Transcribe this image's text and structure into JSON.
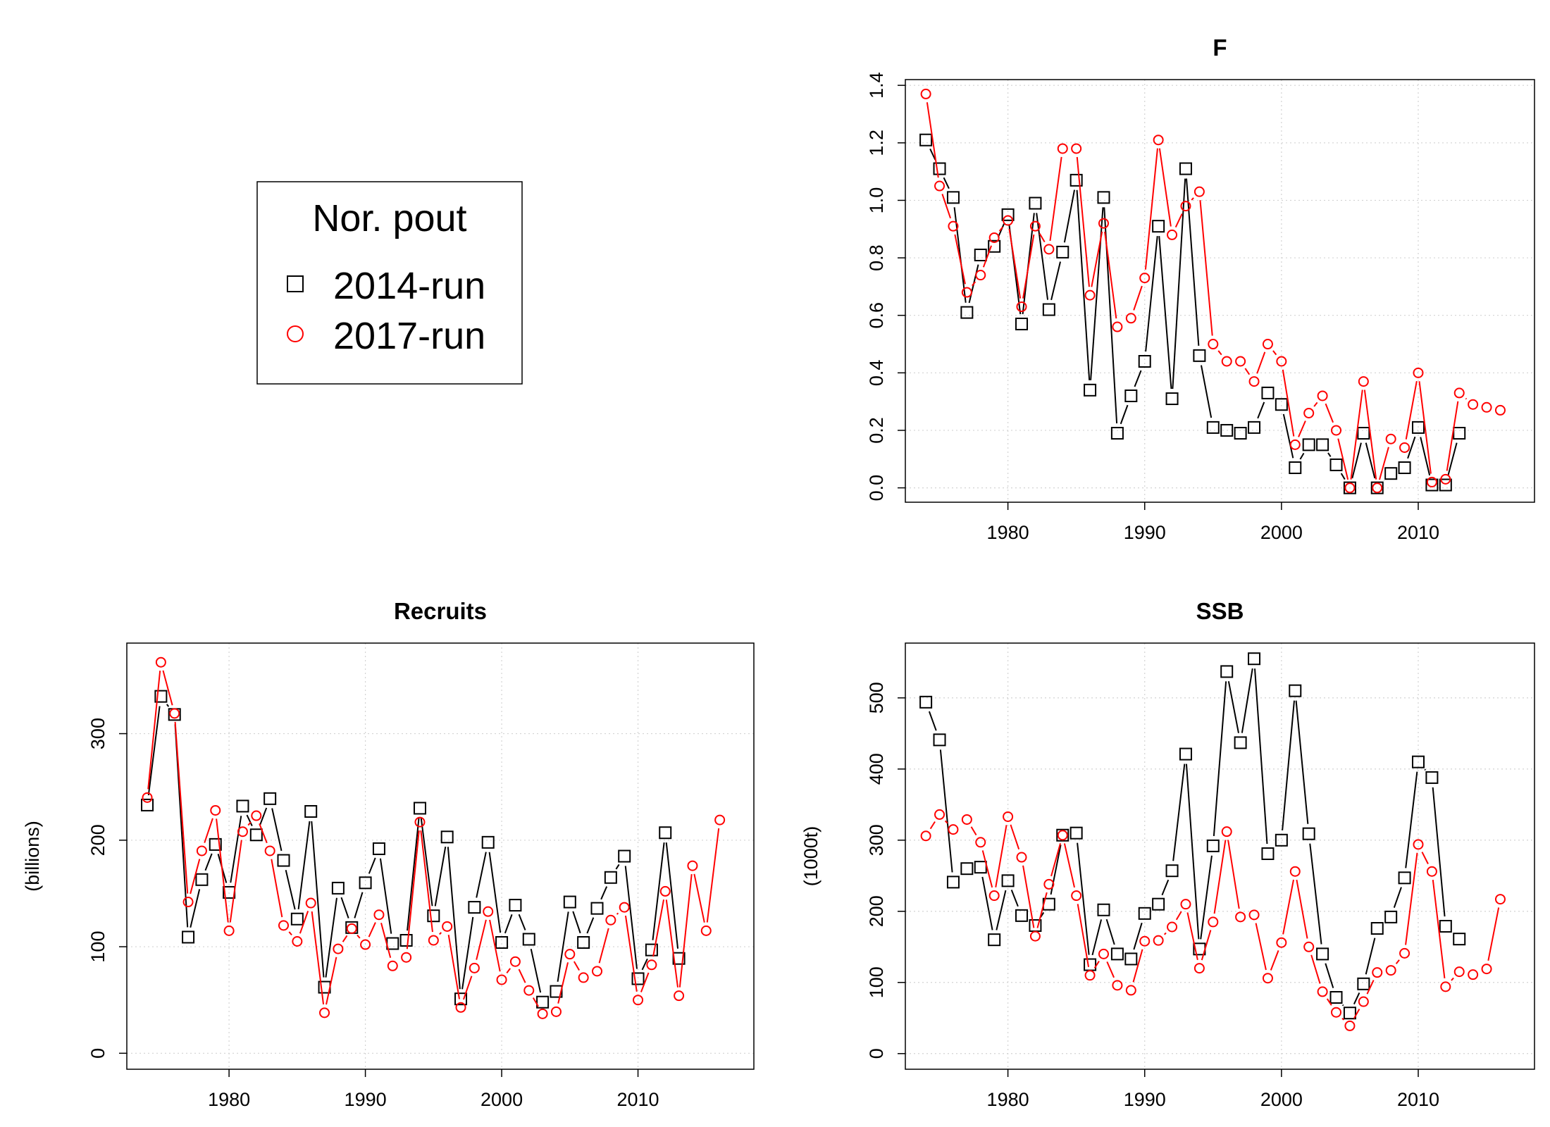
{
  "legend": {
    "title": "Nor. pout",
    "entries": [
      {
        "label": "2014-run",
        "color": "#000000",
        "marker": "square"
      },
      {
        "label": "2017-run",
        "color": "#ff0000",
        "marker": "circle"
      }
    ]
  },
  "chart_data": [
    {
      "type": "line",
      "title": "F",
      "xlabel": "",
      "ylabel": "",
      "xlim": [
        1972.5,
        2018.5
      ],
      "ylim": [
        -0.05,
        1.42
      ],
      "xticks": [
        1980,
        1990,
        2000,
        2010
      ],
      "yticks": [
        0.0,
        0.2,
        0.4,
        0.6,
        0.8,
        1.0,
        1.2,
        1.4
      ],
      "ytick_labels": [
        "0.0",
        "0.2",
        "0.4",
        "0.6",
        "0.8",
        "1.0",
        "1.2",
        "1.4"
      ],
      "grid": true,
      "series": [
        {
          "name": "2014-run",
          "color": "#000000",
          "marker": "square",
          "x": [
            1974,
            1975,
            1976,
            1977,
            1978,
            1979,
            1980,
            1981,
            1982,
            1983,
            1984,
            1985,
            1986,
            1987,
            1988,
            1989,
            1990,
            1991,
            1992,
            1993,
            1994,
            1995,
            1996,
            1997,
            1998,
            1999,
            2000,
            2001,
            2002,
            2003,
            2004,
            2005,
            2006,
            2007,
            2008,
            2009,
            2010,
            2011,
            2012,
            2013
          ],
          "values": [
            1.21,
            1.11,
            1.01,
            0.61,
            0.81,
            0.84,
            0.95,
            0.57,
            0.99,
            0.62,
            0.82,
            1.07,
            0.34,
            1.01,
            0.19,
            0.32,
            0.44,
            0.91,
            0.31,
            1.11,
            0.46,
            0.21,
            0.2,
            0.19,
            0.21,
            0.33,
            0.29,
            0.07,
            0.15,
            0.15,
            0.08,
            0.0,
            0.19,
            0.0,
            0.05,
            0.07,
            0.21,
            0.01,
            0.01,
            0.19
          ]
        },
        {
          "name": "2017-run",
          "color": "#ff0000",
          "marker": "circle",
          "x": [
            1974,
            1975,
            1976,
            1977,
            1978,
            1979,
            1980,
            1981,
            1982,
            1983,
            1984,
            1985,
            1986,
            1987,
            1988,
            1989,
            1990,
            1991,
            1992,
            1993,
            1994,
            1995,
            1996,
            1997,
            1998,
            1999,
            2000,
            2001,
            2002,
            2003,
            2004,
            2005,
            2006,
            2007,
            2008,
            2009,
            2010,
            2011,
            2012,
            2013,
            2014,
            2015,
            2016
          ],
          "values": [
            1.37,
            1.05,
            0.91,
            0.68,
            0.74,
            0.87,
            0.93,
            0.63,
            0.91,
            0.83,
            1.18,
            1.18,
            0.67,
            0.92,
            0.56,
            0.59,
            0.73,
            1.21,
            0.88,
            0.98,
            1.03,
            0.5,
            0.44,
            0.44,
            0.37,
            0.5,
            0.44,
            0.15,
            0.26,
            0.32,
            0.2,
            0.0,
            0.37,
            0.0,
            0.17,
            0.14,
            0.4,
            0.02,
            0.03,
            0.33,
            0.29,
            0.28,
            0.27
          ]
        }
      ]
    },
    {
      "type": "line",
      "title": "Recruits",
      "xlabel": "",
      "ylabel": "(billions)",
      "xlim": [
        1972.5,
        2018.5
      ],
      "ylim": [
        -15,
        385
      ],
      "xticks": [
        1980,
        1990,
        2000,
        2010
      ],
      "yticks": [
        0,
        100,
        200,
        300
      ],
      "ytick_labels": [
        "0",
        "100",
        "200",
        "300"
      ],
      "grid": true,
      "series": [
        {
          "name": "2014-run",
          "color": "#000000",
          "marker": "square",
          "x": [
            1974,
            1975,
            1976,
            1977,
            1978,
            1979,
            1980,
            1981,
            1982,
            1983,
            1984,
            1985,
            1986,
            1987,
            1988,
            1989,
            1990,
            1991,
            1992,
            1993,
            1994,
            1995,
            1996,
            1997,
            1998,
            1999,
            2000,
            2001,
            2002,
            2003,
            2004,
            2005,
            2006,
            2007,
            2008,
            2009,
            2010,
            2011,
            2012,
            2013
          ],
          "values": [
            233,
            335,
            318,
            109,
            163,
            196,
            151,
            232,
            205,
            239,
            181,
            126,
            227,
            62,
            155,
            118,
            160,
            192,
            103,
            106,
            230,
            129,
            203,
            51,
            137,
            198,
            104,
            139,
            107,
            48,
            58,
            142,
            104,
            136,
            165,
            185,
            70,
            97,
            207,
            89
          ]
        },
        {
          "name": "2017-run",
          "color": "#ff0000",
          "marker": "circle",
          "x": [
            1974,
            1975,
            1976,
            1977,
            1978,
            1979,
            1980,
            1981,
            1982,
            1983,
            1984,
            1985,
            1986,
            1987,
            1988,
            1989,
            1990,
            1991,
            1992,
            1993,
            1994,
            1995,
            1996,
            1997,
            1998,
            1999,
            2000,
            2001,
            2002,
            2003,
            2004,
            2005,
            2006,
            2007,
            2008,
            2009,
            2010,
            2011,
            2012,
            2013,
            2014,
            2015,
            2016
          ],
          "values": [
            240,
            367,
            319,
            142,
            190,
            228,
            115,
            208,
            223,
            190,
            120,
            105,
            141,
            38,
            98,
            117,
            102,
            130,
            82,
            90,
            217,
            106,
            119,
            43,
            80,
            133,
            69,
            86,
            59,
            37,
            39,
            93,
            71,
            77,
            125,
            137,
            50,
            83,
            152,
            54,
            176,
            115,
            219
          ]
        }
      ]
    },
    {
      "type": "line",
      "title": "SSB",
      "xlabel": "",
      "ylabel": "(1000t)",
      "xlim": [
        1972.5,
        2018.5
      ],
      "ylim": [
        -22,
        577
      ],
      "xticks": [
        1980,
        1990,
        2000,
        2010
      ],
      "yticks": [
        0,
        100,
        200,
        300,
        400,
        500
      ],
      "ytick_labels": [
        "0",
        "100",
        "200",
        "300",
        "400",
        "500"
      ],
      "grid": true,
      "series": [
        {
          "name": "2014-run",
          "color": "#000000",
          "marker": "square",
          "x": [
            1974,
            1975,
            1976,
            1977,
            1978,
            1979,
            1980,
            1981,
            1982,
            1983,
            1984,
            1985,
            1986,
            1987,
            1988,
            1989,
            1990,
            1991,
            1992,
            1993,
            1994,
            1995,
            1996,
            1997,
            1998,
            1999,
            2000,
            2001,
            2002,
            2003,
            2004,
            2005,
            2006,
            2007,
            2008,
            2009,
            2010,
            2011,
            2012,
            2013
          ],
          "values": [
            494,
            441,
            241,
            260,
            262,
            160,
            243,
            194,
            180,
            210,
            307,
            310,
            125,
            202,
            140,
            133,
            197,
            210,
            257,
            421,
            147,
            292,
            537,
            437,
            555,
            281,
            300,
            510,
            309,
            140,
            79,
            57,
            98,
            176,
            192,
            247,
            410,
            388,
            179,
            161
          ]
        },
        {
          "name": "2017-run",
          "color": "#ff0000",
          "marker": "circle",
          "x": [
            1974,
            1975,
            1976,
            1977,
            1978,
            1979,
            1980,
            1981,
            1982,
            1983,
            1984,
            1985,
            1986,
            1987,
            1988,
            1989,
            1990,
            1991,
            1992,
            1993,
            1994,
            1995,
            1996,
            1997,
            1998,
            1999,
            2000,
            2001,
            2002,
            2003,
            2004,
            2005,
            2006,
            2007,
            2008,
            2009,
            2010,
            2011,
            2012,
            2013,
            2014,
            2015,
            2016
          ],
          "values": [
            306,
            336,
            315,
            329,
            297,
            222,
            333,
            276,
            165,
            238,
            307,
            222,
            110,
            140,
            96,
            89,
            158,
            159,
            178,
            210,
            120,
            185,
            312,
            192,
            195,
            106,
            156,
            256,
            150,
            87,
            58,
            39,
            73,
            114,
            117,
            141,
            294,
            256,
            94,
            115,
            111,
            119,
            217
          ]
        }
      ]
    }
  ]
}
